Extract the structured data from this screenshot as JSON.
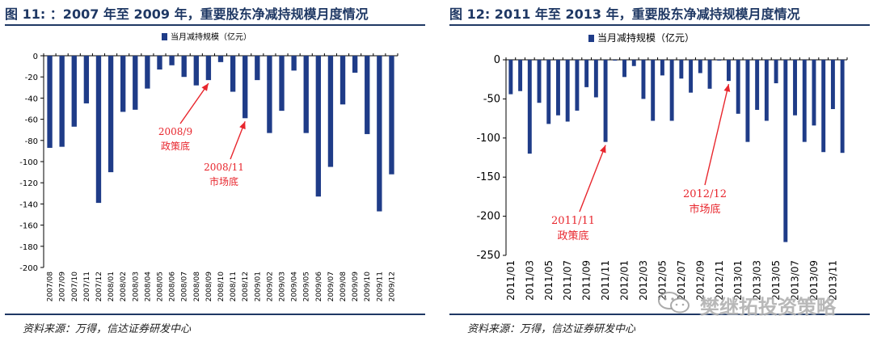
{
  "charts": [
    {
      "id": "left",
      "title": "图 11: ：2007 年至 2009 年，重要股东净减持规模月度情况",
      "source": "资料来源：万得，信达证券研发中心",
      "chart_data": {
        "type": "bar",
        "legend": "当月减持规模（亿元）",
        "legend_position": "top-center",
        "ylim": [
          -200,
          0
        ],
        "yticks": [
          0,
          -20,
          -40,
          -60,
          -80,
          -100,
          -120,
          -140,
          -160,
          -180,
          -200
        ],
        "categories": [
          "2007/08",
          "2007/09",
          "2007/10",
          "2007/11",
          "2007/12",
          "2008/01",
          "2008/02",
          "2008/03",
          "2008/04",
          "2008/05",
          "2008/06",
          "2008/07",
          "2008/08",
          "2008/09",
          "2008/10",
          "2008/11",
          "2008/12",
          "2009/01",
          "2009/02",
          "2009/03",
          "2009/04",
          "2009/05",
          "2009/06",
          "2009/07",
          "2009/08",
          "2009/09",
          "2009/10",
          "2009/11",
          "2009/12"
        ],
        "values": [
          -87,
          -86,
          -67,
          -45,
          -139,
          -110,
          -53,
          -51,
          -31,
          -13,
          -9,
          -20,
          -28,
          -23,
          -6,
          -34,
          -59,
          -23,
          -73,
          -52,
          -14,
          -73,
          -133,
          -105,
          -46,
          -16,
          -74,
          -147,
          -112
        ],
        "annotations": [
          {
            "lines": [
              "2008/9",
              "政策底"
            ],
            "category": "2008/09"
          },
          {
            "lines": [
              "2008/11",
              "市场底"
            ],
            "category": "2008/12"
          }
        ]
      }
    },
    {
      "id": "right",
      "title": "图 12: 2011 年至 2013 年，重要股东净减持规模月度情况",
      "source": "资料来源：万得，信达证券研发中心",
      "chart_data": {
        "type": "bar",
        "legend": "当月减持规模（亿元）",
        "legend_position": "top-center",
        "ylim": [
          -250,
          0
        ],
        "yticks": [
          0,
          -50,
          -100,
          -150,
          -200,
          -250
        ],
        "tick_labels": [
          "2011/01",
          "2011/03",
          "2011/05",
          "2011/07",
          "2011/09",
          "2011/11",
          "2012/01",
          "2012/03",
          "2012/05",
          "2012/07",
          "2012/09",
          "2012/11",
          "2013/01",
          "2013/03",
          "2013/05",
          "2013/07",
          "2013/09",
          "2013/11"
        ],
        "categories": [
          "2011/01",
          "2011/02",
          "2011/03",
          "2011/04",
          "2011/05",
          "2011/06",
          "2011/07",
          "2011/08",
          "2011/09",
          "2011/10",
          "2011/11",
          "2011/12",
          "2012/01",
          "2012/02",
          "2012/03",
          "2012/04",
          "2012/05",
          "2012/06",
          "2012/07",
          "2012/08",
          "2012/09",
          "2012/10",
          "2012/11",
          "2012/12",
          "2013/01",
          "2013/02",
          "2013/03",
          "2013/04",
          "2013/05",
          "2013/06",
          "2013/07",
          "2013/08",
          "2013/09",
          "2013/10",
          "2013/11",
          "2013/12"
        ],
        "values": [
          -44,
          -40,
          -120,
          -55,
          -82,
          -71,
          -79,
          -65,
          -35,
          -48,
          -105,
          -1,
          -22,
          -8,
          -50,
          -78,
          -20,
          -78,
          -24,
          -42,
          -17,
          -37,
          -1,
          -27,
          -69,
          -105,
          -64,
          -78,
          -30,
          -233,
          -71,
          -105,
          -84,
          -118,
          -63,
          -119
        ],
        "annotations": [
          {
            "lines": [
              "2011/11",
              "政策底"
            ],
            "category": "2011/11"
          },
          {
            "lines": [
              "2012/12",
              "市场底"
            ],
            "category": "2012/12"
          }
        ]
      }
    }
  ],
  "watermark": {
    "text": "樊继拓投资策略",
    "icon": "wechat-icon"
  },
  "colors": {
    "bar": "#1f3c88",
    "title": "#1f3864",
    "annotation": "#e8262d",
    "axis": "#000000"
  }
}
